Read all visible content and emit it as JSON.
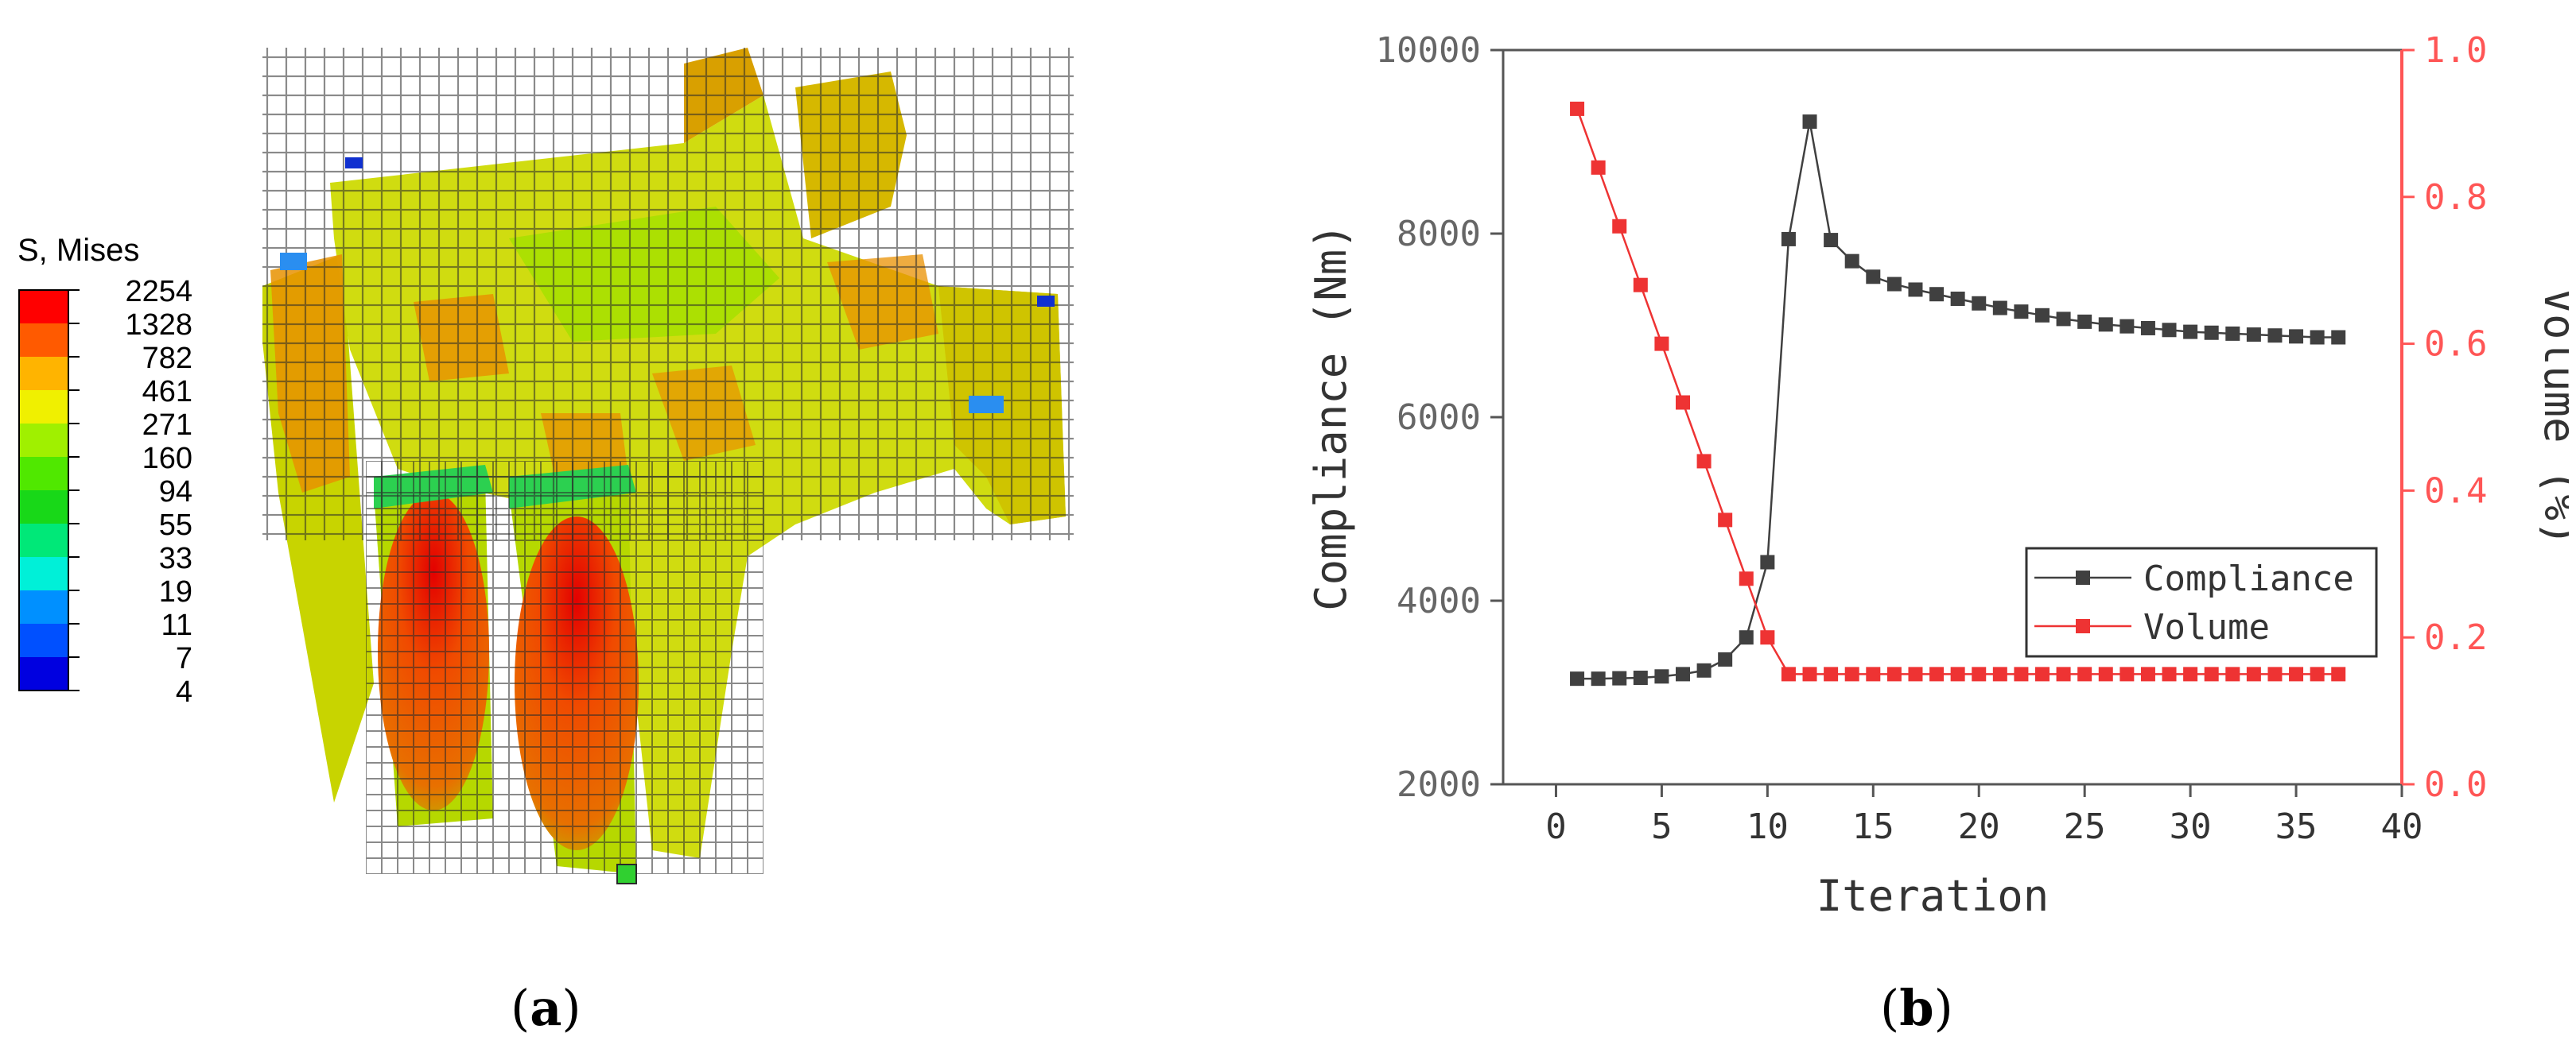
{
  "panel_a": {
    "label_open": "(",
    "label_letter": "a",
    "label_close": ")",
    "legend": {
      "title": "S, Mises",
      "levels": [
        "2254",
        "1328",
        "782",
        "461",
        "271",
        "160",
        "94",
        "55",
        "33",
        "19",
        "11",
        "7",
        "4"
      ],
      "colors": [
        "#ff0000",
        "#ff5a00",
        "#ffb400",
        "#f0f000",
        "#a0f000",
        "#50e800",
        "#18d818",
        "#00e878",
        "#00f0d8",
        "#0090ff",
        "#0050ff",
        "#0000e0"
      ]
    }
  },
  "panel_b": {
    "label_open": "(",
    "label_letter": "b",
    "label_close": ")"
  },
  "chart_data": {
    "type": "line",
    "xlabel": "Iteration",
    "ylabel": "Compliance (Nm)",
    "y2label": "Volume (%)",
    "xlim": [
      -2.5,
      40
    ],
    "xticks": [
      0,
      5,
      10,
      15,
      20,
      25,
      30,
      35,
      40
    ],
    "ylim": [
      2000,
      10000
    ],
    "yticks": [
      2000,
      4000,
      6000,
      8000,
      10000
    ],
    "y2lim": [
      0.0,
      1.0
    ],
    "y2ticks": [
      "0.0",
      "0.2",
      "0.4",
      "0.6",
      "0.8",
      "1.0"
    ],
    "legend_position": "center-right",
    "series": [
      {
        "name": "Compliance",
        "axis": "left",
        "color": "#404040",
        "x": [
          1,
          2,
          3,
          4,
          5,
          6,
          7,
          8,
          9,
          10,
          11,
          12,
          13,
          14,
          15,
          16,
          17,
          18,
          19,
          20,
          21,
          22,
          23,
          24,
          25,
          26,
          27,
          28,
          29,
          30,
          31,
          32,
          33,
          34,
          35,
          36,
          37
        ],
        "values": [
          3150,
          3150,
          3155,
          3160,
          3175,
          3200,
          3240,
          3360,
          3600,
          4420,
          7940,
          9220,
          7930,
          7700,
          7530,
          7450,
          7390,
          7340,
          7290,
          7240,
          7190,
          7150,
          7110,
          7070,
          7040,
          7010,
          6990,
          6970,
          6950,
          6930,
          6920,
          6910,
          6900,
          6890,
          6880,
          6870,
          6870
        ]
      },
      {
        "name": "Volume",
        "axis": "right",
        "color": "#ee3333",
        "x": [
          1,
          2,
          3,
          4,
          5,
          6,
          7,
          8,
          9,
          10,
          11,
          12,
          13,
          14,
          15,
          16,
          17,
          18,
          19,
          20,
          21,
          22,
          23,
          24,
          25,
          26,
          27,
          28,
          29,
          30,
          31,
          32,
          33,
          34,
          35,
          36,
          37
        ],
        "values": [
          0.92,
          0.84,
          0.76,
          0.68,
          0.6,
          0.52,
          0.44,
          0.36,
          0.28,
          0.2,
          0.15,
          0.15,
          0.15,
          0.15,
          0.15,
          0.15,
          0.15,
          0.15,
          0.15,
          0.15,
          0.15,
          0.15,
          0.15,
          0.15,
          0.15,
          0.15,
          0.15,
          0.15,
          0.15,
          0.15,
          0.15,
          0.15,
          0.15,
          0.15,
          0.15,
          0.15,
          0.15
        ]
      }
    ]
  }
}
